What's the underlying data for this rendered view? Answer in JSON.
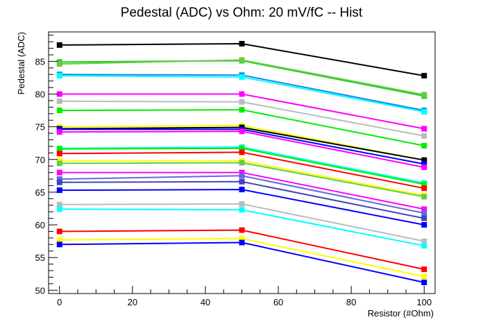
{
  "chart_data": {
    "type": "line",
    "title": "Pedestal (ADC) vs Ohm: 20 mV/fC -- Hist",
    "xlabel": "Resistor (#Ohm)",
    "ylabel": "Pedestal (ADC)",
    "xlim": [
      -3,
      103
    ],
    "ylim": [
      49.5,
      89.5
    ],
    "xticks": [
      0,
      20,
      40,
      60,
      80,
      100
    ],
    "yticks": [
      50,
      55,
      60,
      65,
      70,
      75,
      80,
      85
    ],
    "x": [
      0,
      50,
      100
    ],
    "grid": false,
    "series": [
      {
        "color": "#000000",
        "values": [
          87.5,
          87.7,
          82.8
        ]
      },
      {
        "color": "#22cc22",
        "values": [
          84.9,
          85.1,
          79.7
        ]
      },
      {
        "color": "#66cc44",
        "values": [
          84.6,
          85.2,
          79.9
        ]
      },
      {
        "color": "#1188ee",
        "values": [
          83.0,
          82.9,
          77.5
        ]
      },
      {
        "color": "#00ffff",
        "values": [
          82.8,
          82.6,
          77.3
        ]
      },
      {
        "color": "#ff00ff",
        "values": [
          80.0,
          80.0,
          74.7
        ]
      },
      {
        "color": "#bbbbbb",
        "values": [
          78.9,
          78.8,
          73.6
        ]
      },
      {
        "color": "#00ee00",
        "values": [
          77.5,
          77.6,
          72.1
        ]
      },
      {
        "color": "#ffff00",
        "values": [
          75.0,
          75.2,
          69.9
        ]
      },
      {
        "color": "#000000",
        "values": [
          74.7,
          74.9,
          69.9
        ]
      },
      {
        "color": "#0000ff",
        "values": [
          74.6,
          74.6,
          69.3
        ]
      },
      {
        "color": "#ff00ff",
        "values": [
          74.2,
          74.3,
          68.8
        ]
      },
      {
        "color": "#00ffff",
        "values": [
          71.7,
          71.9,
          66.4
        ]
      },
      {
        "color": "#00ee00",
        "values": [
          71.6,
          71.7,
          66.2
        ]
      },
      {
        "color": "#ff0000",
        "values": [
          70.9,
          71.1,
          65.6
        ]
      },
      {
        "color": "#ffff00",
        "values": [
          69.8,
          69.8,
          64.5
        ]
      },
      {
        "color": "#66cc44",
        "values": [
          69.4,
          69.5,
          64.3
        ]
      },
      {
        "color": "#ff00ff",
        "values": [
          68.0,
          68.0,
          62.4
        ]
      },
      {
        "color": "#6666dd",
        "values": [
          67.0,
          67.5,
          61.8
        ]
      },
      {
        "color": "#4444bb",
        "values": [
          66.5,
          66.6,
          61.0
        ]
      },
      {
        "color": "#0000ff",
        "values": [
          65.3,
          65.4,
          60.0
        ]
      },
      {
        "color": "#bbbbbb",
        "values": [
          63.1,
          63.2,
          57.5
        ]
      },
      {
        "color": "#00ffff",
        "values": [
          62.4,
          62.3,
          56.8
        ]
      },
      {
        "color": "#ff0000",
        "values": [
          59.0,
          59.2,
          53.2
        ]
      },
      {
        "color": "#ffff00",
        "values": [
          57.7,
          57.9,
          52.1
        ]
      },
      {
        "color": "#0000ff",
        "values": [
          57.0,
          57.3,
          51.2
        ]
      }
    ]
  }
}
